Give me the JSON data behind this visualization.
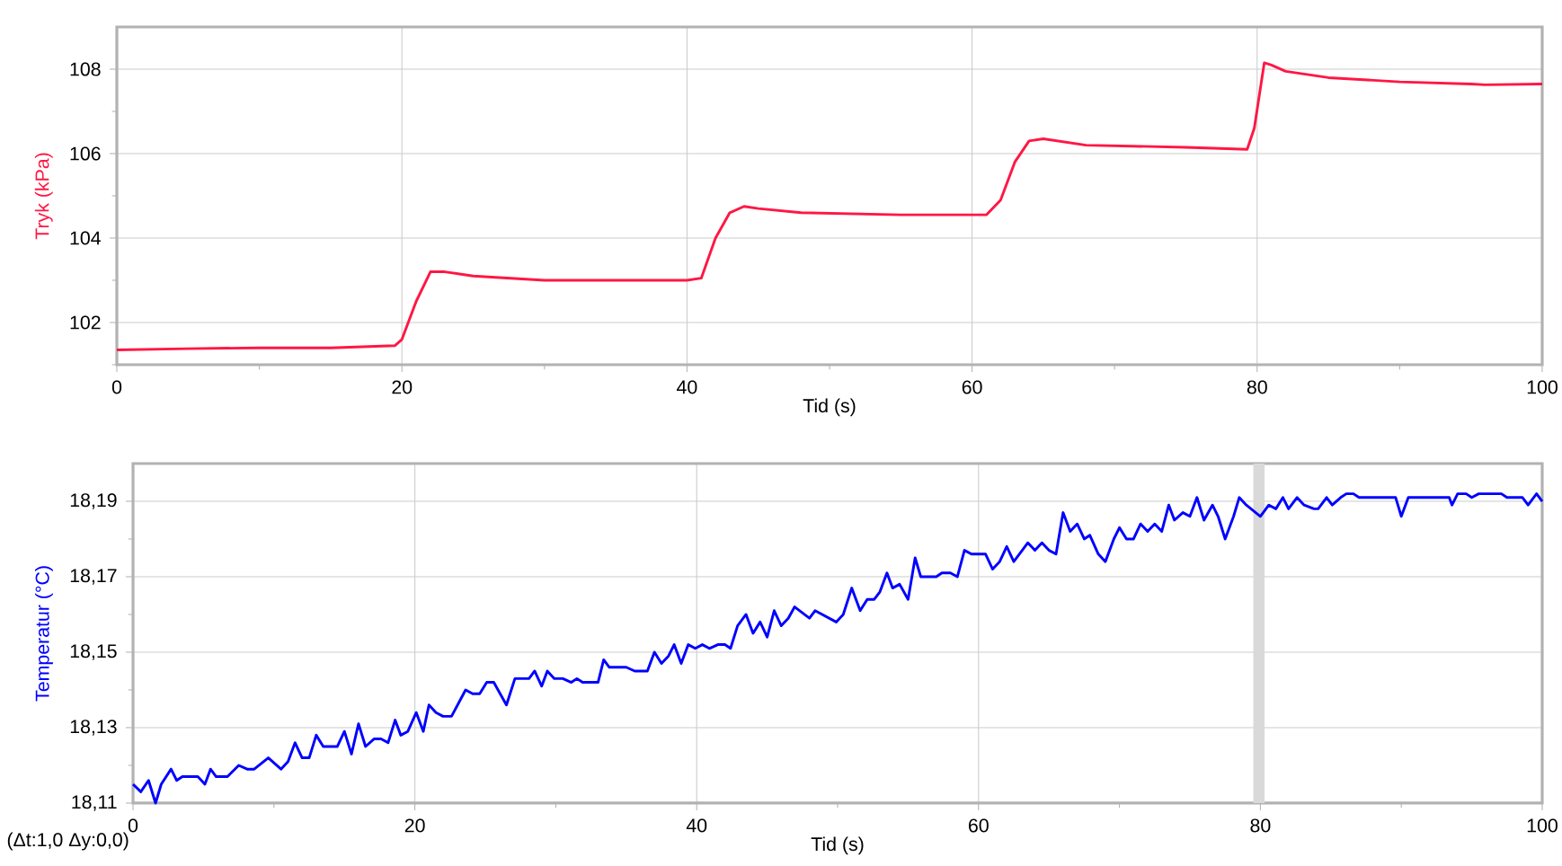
{
  "chart_data": [
    {
      "type": "line",
      "xlabel": "Tid (s)",
      "ylabel": "Tryk (kPa)",
      "xlim": [
        0,
        100
      ],
      "ylim": [
        101,
        109
      ],
      "grid": true,
      "xticks": [
        0,
        {
          "value": 10,
          "label": null
        },
        20,
        {
          "value": 30,
          "label": null
        },
        40,
        {
          "value": 50,
          "label": null
        },
        60,
        {
          "value": 70,
          "label": null
        },
        80,
        {
          "value": 90,
          "label": null
        },
        100
      ],
      "yticks": [
        {
          "value": 101,
          "label": null
        },
        102,
        {
          "value": 103,
          "label": null
        },
        104,
        {
          "value": 105,
          "label": null
        },
        106,
        {
          "value": 107,
          "label": null
        },
        108
      ],
      "series": [
        {
          "color": "#ff1744",
          "x": [
            0,
            5,
            10,
            15,
            19.5,
            20,
            21,
            22,
            23,
            25,
            30,
            35,
            40,
            41,
            42,
            43,
            44,
            45,
            48,
            55,
            61,
            62,
            63,
            64,
            65,
            68,
            75,
            79.3,
            79.8,
            80.5,
            81,
            82,
            85,
            90,
            95,
            96,
            100
          ],
          "values": [
            101.35,
            101.38,
            101.4,
            101.4,
            101.45,
            101.6,
            102.5,
            103.2,
            103.2,
            103.1,
            103.0,
            103.0,
            103.0,
            103.05,
            104.0,
            104.6,
            104.75,
            104.7,
            104.6,
            104.55,
            104.55,
            104.9,
            105.8,
            106.3,
            106.35,
            106.2,
            106.15,
            106.1,
            106.6,
            108.15,
            108.1,
            107.95,
            107.8,
            107.7,
            107.65,
            107.63,
            107.65
          ]
        }
      ]
    },
    {
      "type": "line",
      "xlabel": "Tid (s)",
      "ylabel": "Temperatur (°C)",
      "xlim": [
        0,
        100
      ],
      "ylim": [
        18.11,
        18.2
      ],
      "grid": true,
      "xticks": [
        0,
        {
          "value": 10,
          "label": null
        },
        20,
        {
          "value": 30,
          "label": null
        },
        40,
        {
          "value": 50,
          "label": null
        },
        60,
        {
          "value": 70,
          "label": null
        },
        80,
        {
          "value": 90,
          "label": null
        },
        100
      ],
      "yticks": [
        {
          "value": 18.11,
          "label": "18,11"
        },
        {
          "value": 18.12,
          "label": null
        },
        {
          "value": 18.13,
          "label": "18,13"
        },
        {
          "value": 18.14,
          "label": null
        },
        {
          "value": 18.15,
          "label": "18,15"
        },
        {
          "value": 18.16,
          "label": null
        },
        {
          "value": 18.17,
          "label": "18,17"
        },
        {
          "value": 18.18,
          "label": null
        },
        {
          "value": 18.19,
          "label": "18,19"
        }
      ],
      "bands": [
        {
          "axis": "x",
          "from": 79.5,
          "to": 80.3,
          "color": "#d9d9d9"
        }
      ],
      "annotations": [
        "(Δt:1,0 Δy:0,0)"
      ],
      "series": [
        {
          "color": "#0000ff",
          "x": [
            0,
            0.55,
            1.1,
            1.6,
            2.0,
            2.7,
            3.1,
            3.5,
            4.6,
            5.1,
            5.5,
            5.9,
            6.7,
            7.5,
            8.1,
            8.6,
            9.6,
            10.5,
            11.0,
            11.5,
            12.0,
            12.5,
            13.0,
            13.5,
            14.5,
            15.0,
            15.5,
            16.0,
            16.5,
            17.1,
            17.6,
            18.1,
            18.6,
            19.0,
            19.5,
            20.1,
            20.6,
            21.0,
            21.5,
            22.0,
            22.6,
            23.6,
            24.1,
            24.6,
            25.1,
            25.6,
            26.5,
            27.1,
            28.1,
            28.5,
            29.0,
            29.4,
            29.9,
            30.5,
            31.1,
            31.5,
            31.9,
            33.0,
            33.4,
            33.8,
            35.0,
            35.6,
            36.5,
            37.0,
            37.5,
            38.0,
            38.4,
            38.9,
            39.4,
            39.9,
            40.4,
            40.9,
            41.5,
            42.0,
            42.4,
            42.9,
            43.5,
            44.0,
            44.5,
            45.0,
            45.5,
            46.0,
            46.5,
            46.95,
            48.0,
            48.4,
            49.9,
            50.4,
            51.0,
            51.6,
            52.1,
            52.6,
            53.0,
            53.5,
            53.9,
            54.4,
            55.0,
            55.5,
            55.9,
            57.0,
            57.4,
            58.0,
            58.5,
            59.0,
            59.5,
            60.5,
            61.0,
            61.5,
            62.0,
            62.5,
            63.1,
            63.5,
            64.0,
            64.5,
            65.0,
            65.5,
            66.0,
            66.5,
            67.0,
            67.5,
            67.9,
            68.5,
            69.0,
            69.6,
            70.0,
            70.5,
            71.0,
            71.5,
            72.0,
            72.5,
            73.0,
            73.5,
            73.9,
            74.5,
            75.0,
            75.5,
            76.0,
            76.6,
            77.0,
            77.5,
            78.1,
            78.5,
            79.0,
            80.0,
            80.6,
            81.1,
            81.6,
            82.0,
            82.6,
            83.1,
            83.8,
            84.1,
            84.7,
            85.1,
            85.7,
            86.1,
            86.6,
            87.0,
            89.6,
            90.0,
            90.5,
            93.4,
            93.6,
            94.0,
            94.6,
            95.0,
            95.5,
            97.1,
            97.5,
            98.6,
            99.0,
            99.6,
            100
          ],
          "values": [
            18.115,
            18.113,
            18.116,
            18.11,
            18.115,
            18.119,
            18.116,
            18.117,
            18.117,
            18.115,
            18.119,
            18.117,
            18.117,
            18.12,
            18.119,
            18.119,
            18.122,
            18.119,
            18.121,
            18.126,
            18.122,
            18.122,
            18.128,
            18.125,
            18.125,
            18.129,
            18.123,
            18.131,
            18.125,
            18.127,
            18.127,
            18.126,
            18.132,
            18.128,
            18.129,
            18.134,
            18.129,
            18.136,
            18.134,
            18.133,
            18.133,
            18.14,
            18.139,
            18.139,
            18.142,
            18.142,
            18.136,
            18.143,
            18.143,
            18.145,
            18.141,
            18.145,
            18.143,
            18.143,
            18.142,
            18.143,
            18.142,
            18.142,
            18.148,
            18.146,
            18.146,
            18.145,
            18.145,
            18.15,
            18.147,
            18.149,
            18.152,
            18.147,
            18.152,
            18.151,
            18.152,
            18.151,
            18.152,
            18.152,
            18.151,
            18.157,
            18.16,
            18.155,
            18.158,
            18.154,
            18.161,
            18.157,
            18.159,
            18.162,
            18.159,
            18.161,
            18.158,
            18.16,
            18.167,
            18.161,
            18.164,
            18.164,
            18.166,
            18.171,
            18.167,
            18.168,
            18.164,
            18.175,
            18.17,
            18.17,
            18.171,
            18.171,
            18.17,
            18.177,
            18.176,
            18.176,
            18.172,
            18.174,
            18.178,
            18.174,
            18.177,
            18.179,
            18.177,
            18.179,
            18.177,
            18.176,
            18.187,
            18.182,
            18.184,
            18.18,
            18.181,
            18.176,
            18.174,
            18.18,
            18.183,
            18.18,
            18.18,
            18.184,
            18.182,
            18.184,
            18.182,
            18.189,
            18.185,
            18.187,
            18.186,
            18.191,
            18.185,
            18.189,
            18.186,
            18.18,
            18.186,
            18.191,
            18.189,
            18.186,
            18.189,
            18.188,
            18.191,
            18.188,
            18.191,
            18.189,
            18.188,
            18.188,
            18.191,
            18.189,
            18.191,
            18.192,
            18.192,
            18.191,
            18.191,
            18.186,
            18.191,
            18.191,
            18.189,
            18.192,
            18.192,
            18.191,
            18.192,
            18.192,
            18.191,
            18.191,
            18.189,
            18.192,
            18.19
          ]
        }
      ]
    }
  ]
}
